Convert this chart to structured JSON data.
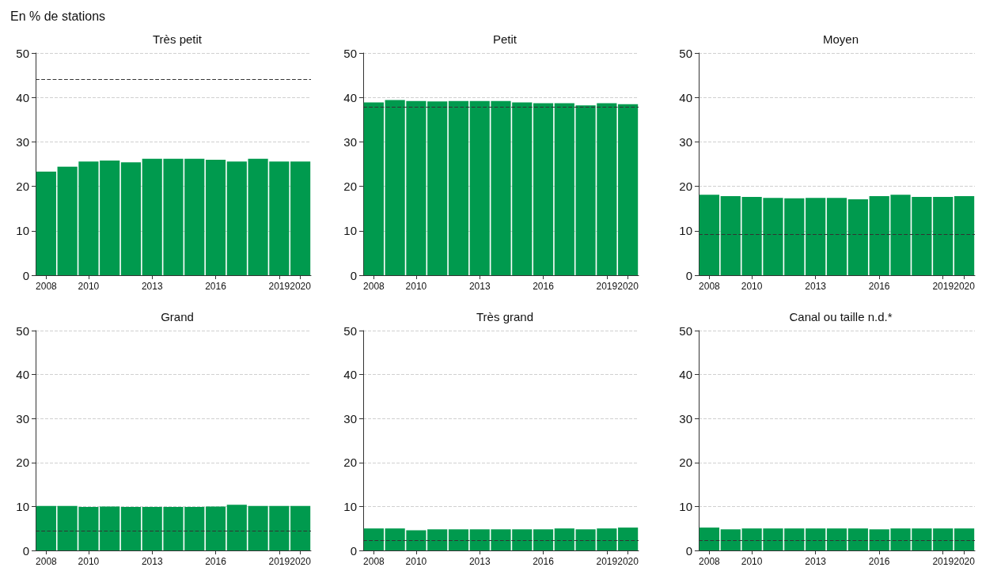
{
  "chart_data": [
    {
      "type": "bar",
      "title": "Très petit",
      "ylabel": "En % de stations",
      "categories": [
        "2008",
        null,
        "2010",
        null,
        null,
        "2013",
        null,
        null,
        "2016",
        null,
        null,
        "2019",
        "2020"
      ],
      "values": [
        23.3,
        24.4,
        25.6,
        25.8,
        25.4,
        26.2,
        26.2,
        26.2,
        26.0,
        25.6,
        26.2,
        25.6,
        25.6
      ],
      "color": "#009a4e",
      "ylim": [
        0,
        50
      ],
      "yticks": [
        0,
        10,
        20,
        30,
        40,
        50
      ],
      "grid": "y",
      "ref_lines": [
        {
          "axis": "y",
          "value": 44.0,
          "color": "#333333",
          "line_style": "dashed"
        }
      ]
    },
    {
      "type": "bar",
      "title": "Petit",
      "categories": [
        "2008",
        null,
        "2010",
        null,
        null,
        "2013",
        null,
        null,
        "2016",
        null,
        null,
        "2019",
        "2020"
      ],
      "values": [
        38.9,
        39.4,
        39.2,
        39.1,
        39.2,
        39.2,
        39.2,
        38.9,
        38.7,
        38.7,
        38.2,
        38.7,
        38.5
      ],
      "color": "#009a4e",
      "ylim": [
        0,
        50
      ],
      "yticks": [
        0,
        10,
        20,
        30,
        40,
        50
      ],
      "grid": "y",
      "ref_lines": [
        {
          "axis": "y",
          "value": 37.9,
          "color": "#333333",
          "line_style": "dashed"
        }
      ]
    },
    {
      "type": "bar",
      "title": "Moyen",
      "categories": [
        "2008",
        null,
        "2010",
        null,
        null,
        "2013",
        null,
        null,
        "2016",
        null,
        null,
        "2019",
        "2020"
      ],
      "values": [
        18.1,
        17.8,
        17.6,
        17.4,
        17.3,
        17.4,
        17.4,
        17.1,
        17.8,
        18.1,
        17.6,
        17.6,
        17.8
      ],
      "color": "#009a4e",
      "ylim": [
        0,
        50
      ],
      "yticks": [
        0,
        10,
        20,
        30,
        40,
        50
      ],
      "grid": "y",
      "ref_lines": [
        {
          "axis": "y",
          "value": 9.2,
          "color": "#333333",
          "line_style": "dashed"
        }
      ]
    },
    {
      "type": "bar",
      "title": "Grand",
      "categories": [
        "2008",
        null,
        "2010",
        null,
        null,
        "2013",
        null,
        null,
        "2016",
        null,
        null,
        "2019",
        "2020"
      ],
      "values": [
        10.1,
        10.1,
        9.9,
        10.0,
        9.9,
        9.9,
        9.9,
        9.9,
        10.0,
        10.4,
        10.1,
        10.1,
        10.1
      ],
      "color": "#009a4e",
      "ylim": [
        0,
        50
      ],
      "yticks": [
        0,
        10,
        20,
        30,
        40,
        50
      ],
      "grid": "y",
      "ref_lines": [
        {
          "axis": "y",
          "value": 4.4,
          "color": "#333333",
          "line_style": "dashed"
        }
      ]
    },
    {
      "type": "bar",
      "title": "Très grand",
      "categories": [
        "2008",
        null,
        "2010",
        null,
        null,
        "2013",
        null,
        null,
        "2016",
        null,
        null,
        "2019",
        "2020"
      ],
      "values": [
        5.0,
        5.0,
        4.6,
        4.8,
        4.8,
        4.8,
        4.8,
        4.8,
        4.8,
        5.0,
        4.8,
        5.0,
        5.2
      ],
      "color": "#009a4e",
      "ylim": [
        0,
        50
      ],
      "yticks": [
        0,
        10,
        20,
        30,
        40,
        50
      ],
      "grid": "y",
      "ref_lines": [
        {
          "axis": "y",
          "value": 2.3,
          "color": "#333333",
          "line_style": "dashed"
        }
      ]
    },
    {
      "type": "bar",
      "title": "Canal ou taille n.d.*",
      "categories": [
        "2008",
        null,
        "2010",
        null,
        null,
        "2013",
        null,
        null,
        "2016",
        null,
        null,
        "2019",
        "2020"
      ],
      "values": [
        5.2,
        4.8,
        5.0,
        5.0,
        5.0,
        5.0,
        5.0,
        5.0,
        4.8,
        5.0,
        5.0,
        5.0,
        5.0
      ],
      "color": "#009a4e",
      "ylim": [
        0,
        50
      ],
      "yticks": [
        0,
        10,
        20,
        30,
        40,
        50
      ],
      "grid": "y",
      "ref_lines": [
        {
          "axis": "y",
          "value": 2.3,
          "color": "#333333",
          "line_style": "dashed"
        }
      ]
    }
  ]
}
